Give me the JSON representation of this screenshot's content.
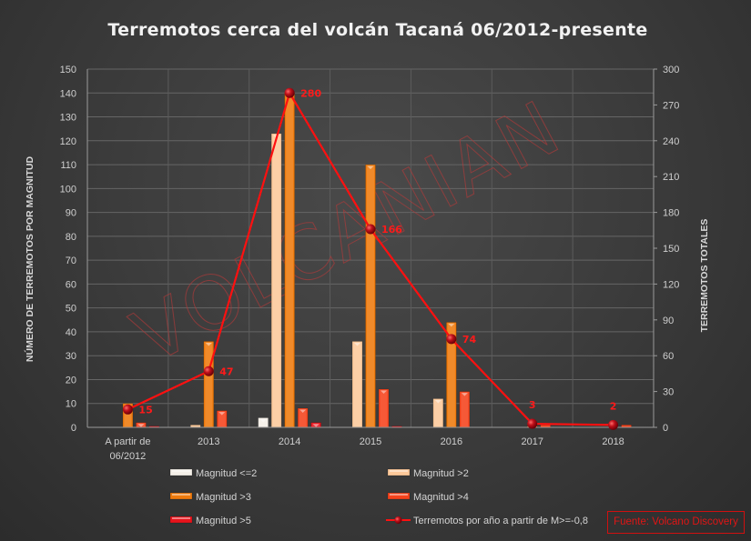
{
  "chart_data": {
    "type": "bar",
    "title": "Terremotos cerca del volcán Tacaná 06/2012-presente",
    "ylabel": "NÚMERO DE TERREMOTOS POR MAGNITUD",
    "y2label": "TERREMOTOS TOTALES",
    "xlabel": "",
    "ylim": [
      0,
      150
    ],
    "y2lim": [
      0,
      300
    ],
    "yticks": [
      0,
      10,
      20,
      30,
      40,
      50,
      60,
      70,
      80,
      90,
      100,
      110,
      120,
      130,
      140,
      150
    ],
    "y2ticks": [
      0,
      30,
      60,
      90,
      120,
      150,
      180,
      210,
      240,
      270,
      300
    ],
    "categories": [
      "A partir de 06/2012",
      "2013",
      "2014",
      "2015",
      "2016",
      "2017",
      "2018"
    ],
    "category_lines": [
      [
        "A partir de",
        "06/2012"
      ],
      [
        "2013"
      ],
      [
        "2014"
      ],
      [
        "2015"
      ],
      [
        "2016"
      ],
      [
        "2017"
      ],
      [
        "2018"
      ]
    ],
    "series": [
      {
        "name": "Magnitud <=2",
        "type": "bar",
        "axis": "left",
        "color": "#f4efe8",
        "values": [
          0,
          0,
          4,
          0,
          0,
          0,
          0
        ]
      },
      {
        "name": "Magnitud >2",
        "type": "bar",
        "axis": "left",
        "color": "#fcc99a",
        "values": [
          0,
          1,
          123,
          36,
          12,
          0,
          0
        ]
      },
      {
        "name": "Magnitud >3",
        "type": "bar",
        "axis": "left",
        "color": "#ee7a0d",
        "values": [
          10,
          36,
          140,
          110,
          44,
          0.5,
          0
        ]
      },
      {
        "name": "Magnitud >4",
        "type": "bar",
        "axis": "left",
        "color": "#f5431c",
        "values": [
          2,
          7,
          8,
          16,
          15,
          1,
          1
        ]
      },
      {
        "name": "Magnitud >5",
        "type": "bar",
        "axis": "left",
        "color": "#e8141c",
        "values": [
          0.5,
          0,
          2,
          0.5,
          0,
          0,
          0
        ]
      },
      {
        "name": "Terremotos por año a partir de M>=-0,8",
        "type": "line",
        "axis": "right",
        "color": "#ff1010",
        "values": [
          15,
          47,
          280,
          166,
          74,
          3,
          2
        ],
        "labels": [
          "15",
          "47",
          "280",
          "166",
          "74",
          "3",
          "2"
        ]
      }
    ],
    "grid": true,
    "legend_position": "bottom",
    "watermark": "VOLCANIAN",
    "annotation": "Fuente: Volcano Discovery"
  },
  "title": "Terremotos cerca del volcán Tacaná 06/2012-presente",
  "legend": [
    {
      "label": "Magnitud <=2",
      "kind": "bar",
      "color": "#f4efe8"
    },
    {
      "label": "Magnitud >2",
      "kind": "bar",
      "color": "#fcc99a"
    },
    {
      "label": "Magnitud >3",
      "kind": "bar",
      "color": "#ee7a0d"
    },
    {
      "label": "Magnitud >4",
      "kind": "bar",
      "color": "#f5431c"
    },
    {
      "label": "Magnitud >5",
      "kind": "bar",
      "color": "#e8141c"
    },
    {
      "label": "Terremotos por año a partir de M>=-0,8",
      "kind": "line",
      "color": "#ff1010"
    }
  ],
  "source": "Fuente: Volcano Discovery",
  "watermark": "VOLCANIAN"
}
